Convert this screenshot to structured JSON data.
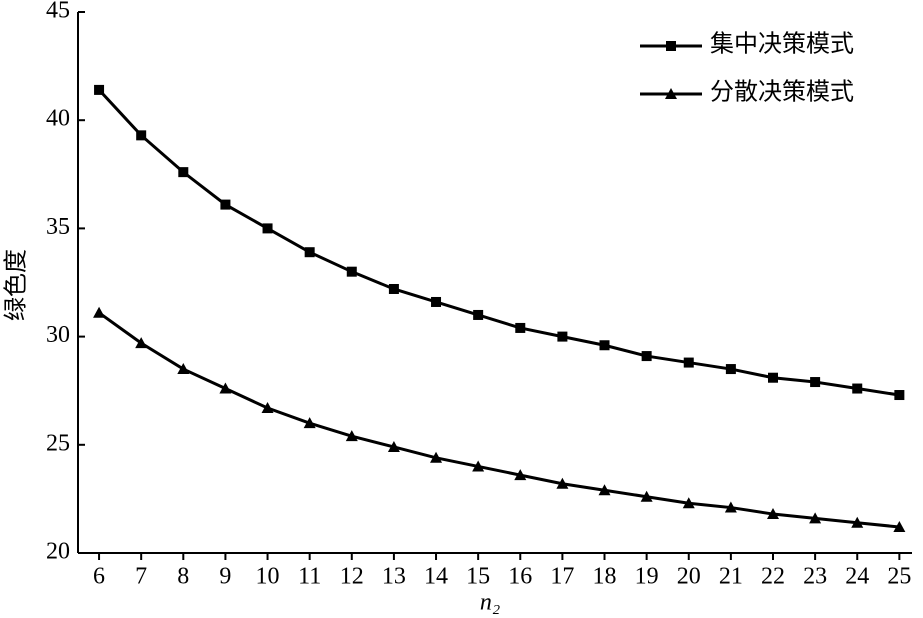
{
  "chart_data": {
    "type": "line",
    "x_label": "n₂",
    "y_label": "绿色度",
    "x": [
      6,
      7,
      8,
      9,
      10,
      11,
      12,
      13,
      14,
      15,
      16,
      17,
      18,
      19,
      20,
      21,
      22,
      23,
      24,
      25
    ],
    "series": [
      {
        "name": "集中决策模式",
        "color": "#000000",
        "marker": "square",
        "values": [
          41.4,
          39.3,
          37.6,
          36.1,
          35.0,
          33.9,
          33.0,
          32.2,
          31.6,
          31.0,
          30.4,
          30.0,
          29.6,
          29.1,
          28.8,
          28.5,
          28.1,
          27.9,
          27.6,
          27.3
        ]
      },
      {
        "name": "分散决策模式",
        "color": "#000000",
        "marker": "triangle",
        "values": [
          31.1,
          29.7,
          28.5,
          27.6,
          26.7,
          26.0,
          25.4,
          24.9,
          24.4,
          24.0,
          23.6,
          23.2,
          22.9,
          22.6,
          22.3,
          22.1,
          21.8,
          21.6,
          21.4,
          21.2
        ]
      }
    ],
    "xlim": [
      5.5,
      25.3
    ],
    "xticks": [
      6,
      7,
      8,
      9,
      10,
      11,
      12,
      13,
      14,
      15,
      16,
      17,
      18,
      19,
      20,
      21,
      22,
      23,
      24,
      25
    ],
    "ylim": [
      20,
      45
    ],
    "yticks": [
      20,
      25,
      30,
      35,
      40,
      45
    ],
    "legend": "top-right"
  }
}
